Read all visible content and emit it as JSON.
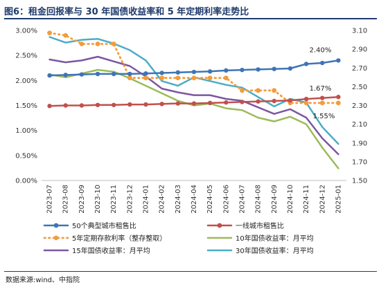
{
  "title": "图6：租金回报率与 30 年国债收益率和 5 年定期利率走势比",
  "source": "数据来源:wind、中指院",
  "chart_data": {
    "type": "line",
    "categories": [
      "2023-07",
      "2023-08",
      "2023-09",
      "2023-10",
      "2023-11",
      "2023-12",
      "2024-01",
      "2024-02",
      "2024-03",
      "2024-04",
      "2024-05",
      "2024-06",
      "2024-07",
      "2024-08",
      "2024-09",
      "2024-10",
      "2024-11",
      "2024-12",
      "2025-01"
    ],
    "y_left": {
      "min": 0,
      "max": 3,
      "step": 0.5,
      "tick_labels": [
        "0.00%",
        "0.50%",
        "1.00%",
        "1.50%",
        "2.00%",
        "2.50%",
        "3.00%"
      ]
    },
    "y_right": {
      "min": 1.5,
      "max": 3.1,
      "step": 0.2,
      "tick_labels": [
        "1.50",
        "1.70",
        "1.90",
        "2.10",
        "2.30",
        "2.50",
        "2.70",
        "2.90",
        "3.10"
      ]
    },
    "series": [
      {
        "name": "50个典型城市租售比",
        "axis": "left",
        "color": "#3d74b6",
        "style": "solid-marker",
        "values": [
          2.1,
          2.11,
          2.12,
          2.13,
          2.13,
          2.13,
          2.14,
          2.15,
          2.16,
          2.17,
          2.18,
          2.2,
          2.21,
          2.22,
          2.23,
          2.24,
          2.33,
          2.35,
          2.4
        ]
      },
      {
        "name": "一线城市租售比",
        "axis": "left",
        "color": "#c0504d",
        "style": "solid-marker",
        "values": [
          1.49,
          1.5,
          1.5,
          1.51,
          1.51,
          1.52,
          1.52,
          1.53,
          1.54,
          1.54,
          1.55,
          1.56,
          1.57,
          1.58,
          1.59,
          1.6,
          1.63,
          1.65,
          1.67
        ]
      },
      {
        "name": "5年定期存款利率（整存整取）",
        "axis": "left",
        "color": "#f39c3c",
        "style": "dotted-marker",
        "values": [
          2.95,
          2.9,
          2.73,
          2.73,
          2.73,
          2.05,
          2.05,
          2.05,
          2.05,
          2.05,
          2.05,
          2.05,
          1.8,
          1.8,
          1.8,
          1.55,
          1.55,
          1.55,
          1.55
        ]
      },
      {
        "name": "10年国债收益率：月平均",
        "axis": "right",
        "color": "#9bbb59",
        "style": "solid",
        "values": [
          2.63,
          2.6,
          2.64,
          2.68,
          2.66,
          2.59,
          2.51,
          2.43,
          2.35,
          2.3,
          2.32,
          2.27,
          2.25,
          2.17,
          2.13,
          2.18,
          2.1,
          1.85,
          1.63
        ]
      },
      {
        "name": "15年国债收益率：月平均",
        "axis": "right",
        "color": "#7b56a0",
        "style": "solid",
        "values": [
          2.79,
          2.76,
          2.78,
          2.82,
          2.77,
          2.72,
          2.61,
          2.48,
          2.44,
          2.41,
          2.41,
          2.37,
          2.35,
          2.28,
          2.21,
          2.26,
          2.17,
          1.95,
          1.78
        ]
      },
      {
        "name": "30年国债收益率：月平均",
        "axis": "right",
        "color": "#4bacc6",
        "style": "solid",
        "values": [
          3.03,
          2.97,
          3.0,
          3.01,
          2.96,
          2.89,
          2.78,
          2.56,
          2.51,
          2.6,
          2.56,
          2.52,
          2.49,
          2.39,
          2.29,
          2.37,
          2.33,
          2.07,
          1.89
        ]
      }
    ],
    "annotations": [
      {
        "text": "2.40%",
        "series": 0,
        "index": 18
      },
      {
        "text": "1.67%",
        "series": 1,
        "index": 18
      },
      {
        "text": "1.55%",
        "series": 2,
        "index": 18
      }
    ],
    "legend": {
      "position": "bottom"
    }
  }
}
